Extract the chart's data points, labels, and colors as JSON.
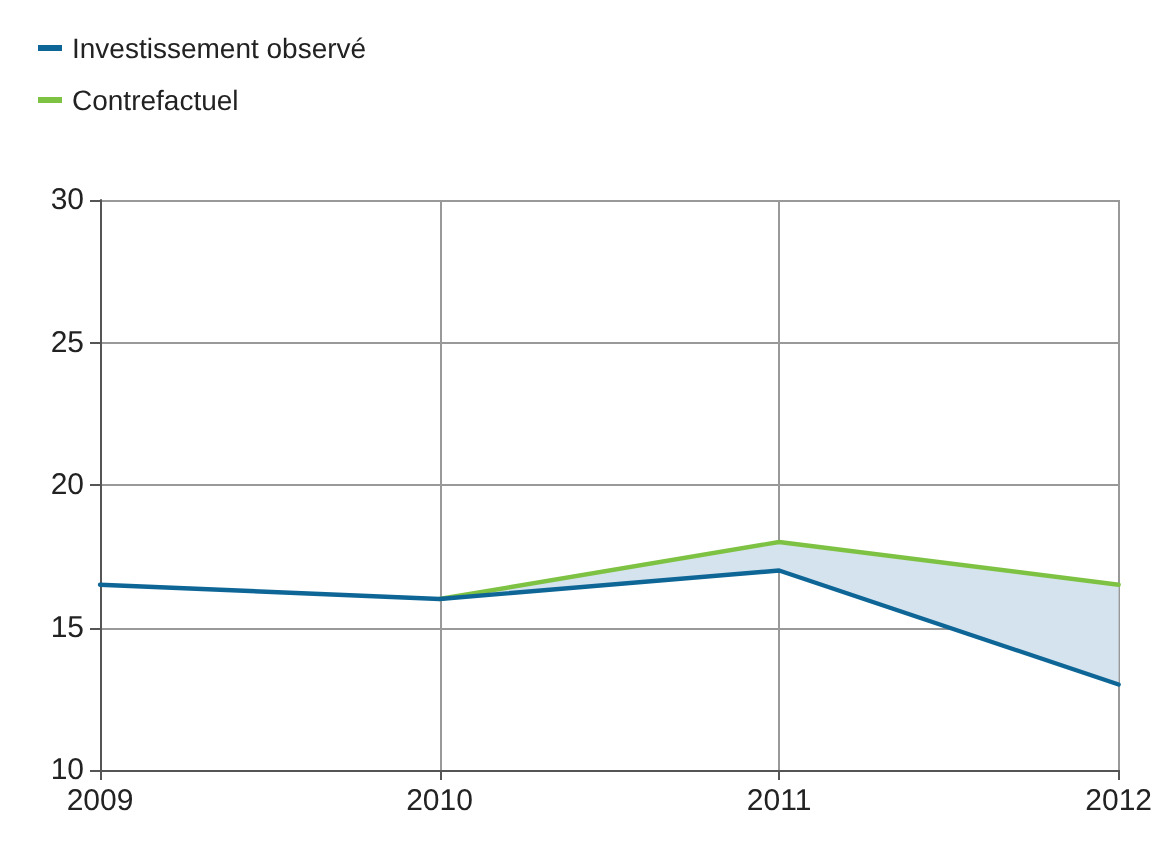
{
  "chart_data": {
    "type": "line",
    "x": [
      2009,
      2010,
      2011,
      2012
    ],
    "series": [
      {
        "name": "Investissement observé",
        "color": "#0e6697",
        "values": [
          16.5,
          16,
          17,
          13
        ]
      },
      {
        "name": "Contrefactuel",
        "color": "#7dc242",
        "values": [
          null,
          16,
          18,
          16.5
        ],
        "lower": [
          null,
          16,
          17,
          13
        ],
        "upper": [
          null,
          16,
          18,
          16.5
        ]
      }
    ],
    "xlim": [
      2009,
      2012
    ],
    "xticks": [
      2009,
      2010,
      2011,
      2012
    ],
    "ylim": [
      10,
      30
    ],
    "yticks": [
      10,
      15,
      20,
      25,
      30
    ],
    "grid": true,
    "legend": "top left",
    "marker": "none",
    "line_style": "solid"
  }
}
